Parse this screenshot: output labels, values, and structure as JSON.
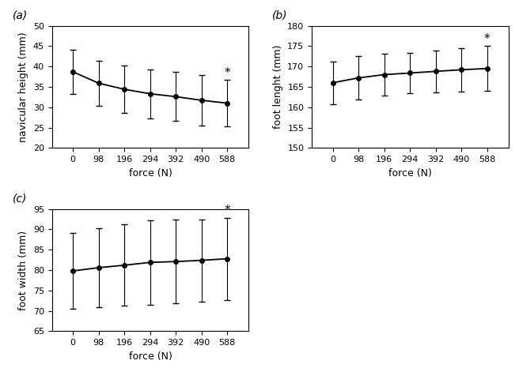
{
  "chart_data": [
    {
      "type": "line",
      "title": "(a)",
      "x_label": "force (N)",
      "y_label": "navicular height (mm)",
      "x": [
        0,
        98,
        196,
        294,
        392,
        490,
        588
      ],
      "values": [
        38.7,
        35.9,
        34.4,
        33.3,
        32.6,
        31.7,
        31.0
      ],
      "error": [
        5.5,
        5.5,
        5.9,
        6.0,
        6.0,
        6.2,
        5.7
      ],
      "color": "#000000",
      "marker": "o",
      "annotation": {
        "text": "*",
        "x": 588
      },
      "xlim": [
        -80,
        670
      ],
      "xticks": [
        0,
        98,
        196,
        294,
        392,
        490,
        588
      ],
      "ylim": [
        20,
        50
      ],
      "yticks": [
        20,
        25,
        30,
        35,
        40,
        45,
        50
      ]
    },
    {
      "type": "line",
      "title": "(b)",
      "x_label": "force (N)",
      "y_label": "foot lenght (mm)",
      "x": [
        0,
        98,
        196,
        294,
        392,
        490,
        588
      ],
      "values": [
        166.0,
        167.2,
        168.0,
        168.4,
        168.8,
        169.2,
        169.5
      ],
      "error": [
        5.2,
        5.3,
        5.1,
        5.0,
        5.1,
        5.3,
        5.5
      ],
      "color": "#000000",
      "marker": "o",
      "annotation": {
        "text": "*",
        "x": 588
      },
      "xlim": [
        -80,
        670
      ],
      "xticks": [
        0,
        98,
        196,
        294,
        392,
        490,
        588
      ],
      "ylim": [
        150,
        180
      ],
      "yticks": [
        150,
        155,
        160,
        165,
        170,
        175,
        180
      ]
    },
    {
      "type": "line",
      "title": "(c)",
      "x_label": "force (N)",
      "y_label": "foot width (mm)",
      "x": [
        0,
        98,
        196,
        294,
        392,
        490,
        588
      ],
      "values": [
        79.8,
        80.6,
        81.2,
        81.9,
        82.1,
        82.4,
        82.8
      ],
      "error": [
        9.3,
        9.7,
        10.0,
        10.4,
        10.3,
        10.1,
        10.1
      ],
      "color": "#000000",
      "marker": "o",
      "annotation": {
        "text": "*",
        "x": 588
      },
      "xlim": [
        -80,
        670
      ],
      "xticks": [
        0,
        98,
        196,
        294,
        392,
        490,
        588
      ],
      "ylim": [
        65,
        95
      ],
      "yticks": [
        65,
        70,
        75,
        80,
        85,
        90,
        95
      ]
    }
  ]
}
